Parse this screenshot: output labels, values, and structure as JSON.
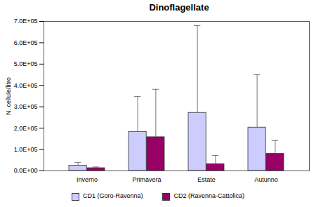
{
  "chart_data": {
    "type": "bar",
    "title": "Dinoflagellate",
    "y_label": "N. cellule/litro",
    "categories": [
      "Inverno",
      "Primavera",
      "Estate",
      "Autunno"
    ],
    "series": [
      {
        "name": "CD1 (Goro-Ravenna)",
        "color": "#ccccff",
        "values": [
          25000,
          183000,
          272000,
          203000
        ],
        "errors": [
          15000,
          165000,
          408000,
          247000
        ]
      },
      {
        "name": "CD2 (Ravenna-Cattolica)",
        "color": "#990066",
        "values": [
          13000,
          158000,
          32000,
          80000
        ],
        "errors": [
          5000,
          224000,
          40000,
          62000
        ]
      }
    ],
    "ylim": [
      0,
      700000
    ],
    "yticks": [
      {
        "value": 0,
        "label": "0.0E+00"
      },
      {
        "value": 100000,
        "label": "1.0E+05"
      },
      {
        "value": 200000,
        "label": "2.0E+05"
      },
      {
        "value": 300000,
        "label": "3.0E+05"
      },
      {
        "value": 400000,
        "label": "4.0E+05"
      },
      {
        "value": 500000,
        "label": "5.0E+05"
      },
      {
        "value": 600000,
        "label": "6.0E+05"
      },
      {
        "value": 700000,
        "label": "7.0E+05"
      }
    ],
    "grid": false,
    "legend": "bottom"
  }
}
